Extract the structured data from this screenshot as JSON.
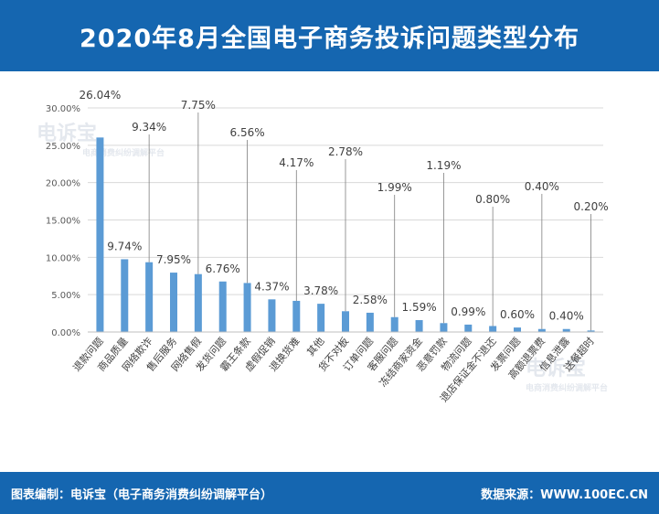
{
  "title": "2020年8月全国电子商务投诉问题类型分布",
  "footer": {
    "left": "图表编制：电诉宝（电子商务消费纠纷调解平台）",
    "right": "数据来源：WWW.100EC.CN"
  },
  "watermark": {
    "brand": "电诉宝",
    "sub": "电商消费纠纷调解平台"
  },
  "colors": {
    "header": "#1566b0",
    "bar": "#5b9bd5"
  },
  "chart_data": {
    "type": "bar",
    "title": "",
    "xlabel": "",
    "ylabel": "",
    "ylim": [
      0,
      30
    ],
    "yticks": [
      "0.00%",
      "5.00%",
      "10.00%",
      "15.00%",
      "20.00%",
      "25.00%",
      "30.00%"
    ],
    "grid": true,
    "categories": [
      "退款问题",
      "商品质量",
      "网络欺诈",
      "售后服务",
      "网络售假",
      "发货问题",
      "霸王条款",
      "虚假促销",
      "退换货难",
      "其他",
      "货不对板",
      "订单问题",
      "客服问题",
      "冻结商家资金",
      "恶意罚款",
      "物流问题",
      "退店保证金不退还",
      "发票问题",
      "高额退票费",
      "信息泄露",
      "送餐超时"
    ],
    "values": [
      26.04,
      9.74,
      9.34,
      7.95,
      7.75,
      6.76,
      6.56,
      4.37,
      4.17,
      3.78,
      2.78,
      2.58,
      1.99,
      1.59,
      1.19,
      0.99,
      0.8,
      0.6,
      0.4,
      0.4,
      0.2
    ],
    "data_labels": [
      "26.04%",
      "9.74%",
      "9.34%",
      "7.95%",
      "7.75%",
      "6.76%",
      "6.56%",
      "4.37%",
      "4.17%",
      "3.78%",
      "2.78%",
      "2.58%",
      "1.99%",
      "1.59%",
      "1.19%",
      "0.99%",
      "0.80%",
      "0.60%",
      "0.40%",
      "0.40%",
      "0.20%"
    ]
  }
}
